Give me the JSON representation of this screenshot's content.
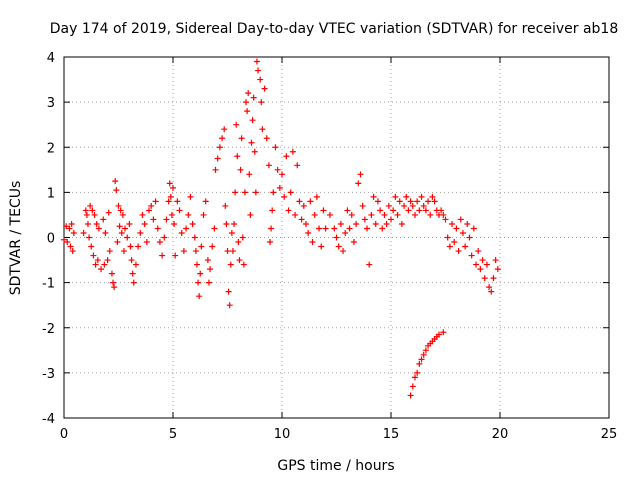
{
  "chart_data": {
    "type": "scatter",
    "title": "Day 174 of 2019, Sidereal Day-to-day VTEC variation (SDTVAR) for receiver ab18",
    "xlabel": "GPS time / hours",
    "ylabel": "SDTVAR / TECUs",
    "xlim": [
      0,
      25
    ],
    "ylim": [
      -4,
      4
    ],
    "xticks": [
      0,
      5,
      10,
      15,
      20,
      25
    ],
    "yticks": [
      -4,
      -3,
      -2,
      -1,
      0,
      1,
      2,
      3,
      4
    ],
    "grid": true,
    "marker": "+",
    "color": "#ff0000",
    "series": [
      {
        "name": "SDTVAR",
        "points": [
          [
            0.0,
            -0.05
          ],
          [
            0.1,
            0.25
          ],
          [
            0.15,
            -0.1
          ],
          [
            0.25,
            0.2
          ],
          [
            0.3,
            -0.2
          ],
          [
            0.35,
            0.3
          ],
          [
            0.4,
            -0.3
          ],
          [
            0.45,
            0.1
          ],
          [
            0.9,
            0.1
          ],
          [
            1.0,
            0.6
          ],
          [
            1.05,
            0.5
          ],
          [
            1.1,
            0.3
          ],
          [
            1.15,
            0.0
          ],
          [
            1.2,
            0.7
          ],
          [
            1.25,
            -0.2
          ],
          [
            1.3,
            0.6
          ],
          [
            1.35,
            -0.4
          ],
          [
            1.4,
            0.5
          ],
          [
            1.45,
            -0.6
          ],
          [
            1.5,
            0.3
          ],
          [
            1.55,
            -0.5
          ],
          [
            1.6,
            0.2
          ],
          [
            1.7,
            -0.7
          ],
          [
            1.8,
            0.4
          ],
          [
            1.85,
            -0.6
          ],
          [
            1.9,
            0.1
          ],
          [
            2.0,
            -0.5
          ],
          [
            2.05,
            0.55
          ],
          [
            2.1,
            -0.3
          ],
          [
            2.2,
            -0.8
          ],
          [
            2.25,
            -1.0
          ],
          [
            2.3,
            -1.1
          ],
          [
            2.35,
            1.25
          ],
          [
            2.4,
            1.05
          ],
          [
            2.45,
            -0.1
          ],
          [
            2.5,
            0.7
          ],
          [
            2.55,
            0.25
          ],
          [
            2.6,
            0.6
          ],
          [
            2.65,
            0.1
          ],
          [
            2.7,
            0.5
          ],
          [
            2.75,
            -0.3
          ],
          [
            2.8,
            0.2
          ],
          [
            2.9,
            0.0
          ],
          [
            3.0,
            0.3
          ],
          [
            3.05,
            -0.2
          ],
          [
            3.1,
            -0.5
          ],
          [
            3.15,
            -0.8
          ],
          [
            3.2,
            -1.0
          ],
          [
            3.3,
            -0.6
          ],
          [
            3.4,
            -0.2
          ],
          [
            3.5,
            0.1
          ],
          [
            3.6,
            0.5
          ],
          [
            3.7,
            0.3
          ],
          [
            3.8,
            -0.1
          ],
          [
            3.9,
            0.6
          ],
          [
            4.0,
            0.7
          ],
          [
            4.1,
            0.4
          ],
          [
            4.2,
            0.8
          ],
          [
            4.3,
            0.2
          ],
          [
            4.4,
            -0.1
          ],
          [
            4.5,
            -0.4
          ],
          [
            4.6,
            0.0
          ],
          [
            4.7,
            0.4
          ],
          [
            4.8,
            0.8
          ],
          [
            4.85,
            1.2
          ],
          [
            4.9,
            0.9
          ],
          [
            4.95,
            0.5
          ],
          [
            5.0,
            1.1
          ],
          [
            5.05,
            0.3
          ],
          [
            5.1,
            -0.4
          ],
          [
            5.2,
            0.8
          ],
          [
            5.3,
            0.6
          ],
          [
            5.4,
            0.1
          ],
          [
            5.5,
            -0.3
          ],
          [
            5.6,
            0.2
          ],
          [
            5.7,
            0.5
          ],
          [
            5.8,
            0.9
          ],
          [
            5.9,
            0.3
          ],
          [
            6.0,
            0.0
          ],
          [
            6.05,
            -0.3
          ],
          [
            6.1,
            -0.6
          ],
          [
            6.15,
            -1.0
          ],
          [
            6.2,
            -1.3
          ],
          [
            6.25,
            -0.8
          ],
          [
            6.3,
            -0.2
          ],
          [
            6.4,
            0.5
          ],
          [
            6.5,
            0.8
          ],
          [
            6.6,
            -0.5
          ],
          [
            6.65,
            -1.0
          ],
          [
            6.7,
            -0.7
          ],
          [
            6.8,
            -0.2
          ],
          [
            6.9,
            0.2
          ],
          [
            6.95,
            1.5
          ],
          [
            7.05,
            1.75
          ],
          [
            7.15,
            2.0
          ],
          [
            7.25,
            2.2
          ],
          [
            7.35,
            2.4
          ],
          [
            7.4,
            0.7
          ],
          [
            7.45,
            0.3
          ],
          [
            7.5,
            -0.3
          ],
          [
            7.55,
            -1.2
          ],
          [
            7.6,
            -1.5
          ],
          [
            7.65,
            -0.6
          ],
          [
            7.7,
            0.1
          ],
          [
            7.75,
            -0.3
          ],
          [
            7.8,
            0.3
          ],
          [
            7.85,
            1.0
          ],
          [
            7.9,
            2.5
          ],
          [
            7.95,
            1.8
          ],
          [
            8.0,
            -0.1
          ],
          [
            8.05,
            -0.5
          ],
          [
            8.1,
            1.5
          ],
          [
            8.15,
            2.2
          ],
          [
            8.2,
            0.0
          ],
          [
            8.25,
            -0.6
          ],
          [
            8.3,
            1.0
          ],
          [
            8.35,
            3.0
          ],
          [
            8.4,
            2.8
          ],
          [
            8.45,
            3.2
          ],
          [
            8.5,
            1.4
          ],
          [
            8.55,
            0.5
          ],
          [
            8.6,
            2.1
          ],
          [
            8.65,
            2.6
          ],
          [
            8.7,
            3.1
          ],
          [
            8.75,
            1.9
          ],
          [
            8.8,
            1.0
          ],
          [
            8.85,
            3.9
          ],
          [
            8.9,
            3.7
          ],
          [
            9.0,
            3.5
          ],
          [
            9.05,
            3.0
          ],
          [
            9.1,
            2.4
          ],
          [
            9.2,
            3.3
          ],
          [
            9.3,
            2.2
          ],
          [
            9.4,
            1.6
          ],
          [
            9.45,
            -0.1
          ],
          [
            9.5,
            0.2
          ],
          [
            9.55,
            0.6
          ],
          [
            9.6,
            1.0
          ],
          [
            9.7,
            2.0
          ],
          [
            9.8,
            1.5
          ],
          [
            9.9,
            1.1
          ],
          [
            10.0,
            1.4
          ],
          [
            10.1,
            0.9
          ],
          [
            10.2,
            1.8
          ],
          [
            10.3,
            0.6
          ],
          [
            10.4,
            1.0
          ],
          [
            10.5,
            1.9
          ],
          [
            10.6,
            0.5
          ],
          [
            10.7,
            1.6
          ],
          [
            10.8,
            0.8
          ],
          [
            10.9,
            0.4
          ],
          [
            11.0,
            0.7
          ],
          [
            11.1,
            0.3
          ],
          [
            11.2,
            0.1
          ],
          [
            11.3,
            0.8
          ],
          [
            11.4,
            -0.1
          ],
          [
            11.5,
            0.5
          ],
          [
            11.6,
            0.9
          ],
          [
            11.7,
            0.2
          ],
          [
            11.8,
            -0.2
          ],
          [
            11.9,
            0.6
          ],
          [
            12.0,
            0.2
          ],
          [
            12.2,
            0.5
          ],
          [
            12.4,
            0.2
          ],
          [
            12.5,
            0.0
          ],
          [
            12.6,
            -0.2
          ],
          [
            12.7,
            0.3
          ],
          [
            12.8,
            -0.3
          ],
          [
            12.9,
            0.1
          ],
          [
            13.0,
            0.6
          ],
          [
            13.1,
            0.2
          ],
          [
            13.2,
            0.5
          ],
          [
            13.3,
            -0.1
          ],
          [
            13.4,
            0.3
          ],
          [
            13.5,
            1.2
          ],
          [
            13.6,
            1.4
          ],
          [
            13.7,
            0.7
          ],
          [
            13.8,
            0.4
          ],
          [
            13.9,
            0.2
          ],
          [
            14.0,
            -0.6
          ],
          [
            14.1,
            0.5
          ],
          [
            14.2,
            0.9
          ],
          [
            14.3,
            0.3
          ],
          [
            14.4,
            0.8
          ],
          [
            14.5,
            0.6
          ],
          [
            14.6,
            0.2
          ],
          [
            14.7,
            0.5
          ],
          [
            14.8,
            0.3
          ],
          [
            14.9,
            0.7
          ],
          [
            15.0,
            0.4
          ],
          [
            15.1,
            0.6
          ],
          [
            15.2,
            0.9
          ],
          [
            15.3,
            0.5
          ],
          [
            15.4,
            0.8
          ],
          [
            15.5,
            0.3
          ],
          [
            15.6,
            0.7
          ],
          [
            15.7,
            0.9
          ],
          [
            15.8,
            0.6
          ],
          [
            15.9,
            0.8
          ],
          [
            16.0,
            0.7
          ],
          [
            16.1,
            0.5
          ],
          [
            16.2,
            0.8
          ],
          [
            16.3,
            0.6
          ],
          [
            16.4,
            0.9
          ],
          [
            16.5,
            0.7
          ],
          [
            16.6,
            0.6
          ],
          [
            16.7,
            0.8
          ],
          [
            16.8,
            0.5
          ],
          [
            16.9,
            0.9
          ],
          [
            17.0,
            0.8
          ],
          [
            17.1,
            0.6
          ],
          [
            17.2,
            0.5
          ],
          [
            17.3,
            0.6
          ],
          [
            17.4,
            0.5
          ],
          [
            17.5,
            0.4
          ],
          [
            15.9,
            -3.5
          ],
          [
            16.0,
            -3.3
          ],
          [
            16.1,
            -3.1
          ],
          [
            16.2,
            -3.0
          ],
          [
            16.3,
            -2.8
          ],
          [
            16.4,
            -2.7
          ],
          [
            16.5,
            -2.6
          ],
          [
            16.6,
            -2.5
          ],
          [
            16.7,
            -2.4
          ],
          [
            16.8,
            -2.35
          ],
          [
            16.9,
            -2.3
          ],
          [
            17.0,
            -2.25
          ],
          [
            17.1,
            -2.2
          ],
          [
            17.2,
            -2.15
          ],
          [
            17.4,
            -2.1
          ],
          [
            17.6,
            0.0
          ],
          [
            17.7,
            -0.2
          ],
          [
            17.8,
            0.3
          ],
          [
            17.9,
            -0.1
          ],
          [
            18.0,
            0.2
          ],
          [
            18.1,
            -0.3
          ],
          [
            18.2,
            0.4
          ],
          [
            18.3,
            0.1
          ],
          [
            18.4,
            -0.2
          ],
          [
            18.5,
            0.3
          ],
          [
            18.6,
            0.0
          ],
          [
            18.7,
            -0.4
          ],
          [
            18.8,
            0.2
          ],
          [
            18.9,
            -0.6
          ],
          [
            19.0,
            -0.3
          ],
          [
            19.1,
            -0.7
          ],
          [
            19.2,
            -0.5
          ],
          [
            19.3,
            -0.9
          ],
          [
            19.4,
            -0.6
          ],
          [
            19.5,
            -1.1
          ],
          [
            19.6,
            -1.2
          ],
          [
            19.7,
            -0.9
          ],
          [
            19.8,
            -0.5
          ],
          [
            19.9,
            -0.7
          ]
        ]
      }
    ]
  }
}
